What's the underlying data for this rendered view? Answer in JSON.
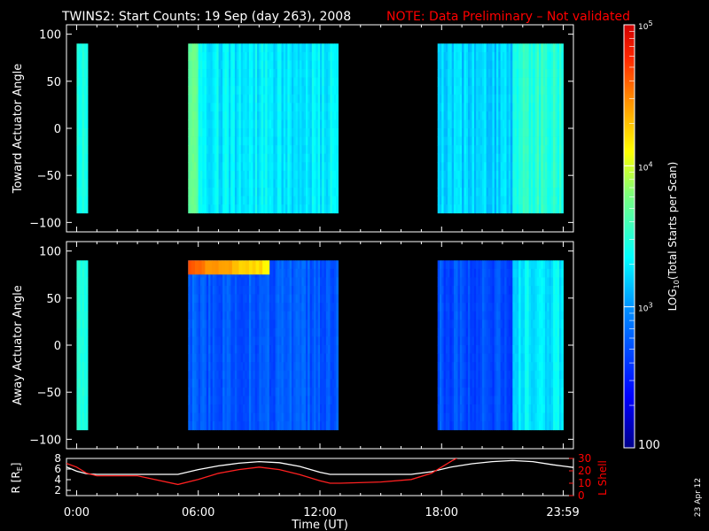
{
  "title": "TWINS2: Start Counts: 19 Sep (day 263), 2008",
  "note": "NOTE: Data Preliminary – Not validated",
  "date_stamp": "23 Apr 12",
  "colors": {
    "background": "#000000",
    "axes": "#ffffff",
    "note": "#ff0000",
    "lshell": "#ff2020",
    "radius": "#ffffff"
  },
  "chart_data": [
    {
      "type": "heatmap",
      "panel": "toward",
      "ylabel": "Toward Actuator Angle",
      "ylim": [
        -110,
        110
      ],
      "yticks": [
        "100",
        "50",
        "0",
        "−50",
        "−100"
      ],
      "ytick_values": [
        100,
        50,
        0,
        -50,
        -100
      ],
      "xlim_hours": [
        -0.5,
        24.5
      ],
      "angle_range": [
        -90,
        90
      ],
      "data_blocks_hours": [
        [
          0.0,
          0.55
        ],
        [
          5.5,
          12.9
        ],
        [
          17.8,
          24.0
        ]
      ],
      "typical_log10_counts": [
        {
          "hours": [
            0.0,
            0.55
          ],
          "value": 3.5
        },
        {
          "hours": [
            5.5,
            6.0
          ],
          "value": 3.75
        },
        {
          "hours": [
            6.0,
            12.9
          ],
          "value": 3.3
        },
        {
          "hours": [
            17.8,
            21.5
          ],
          "value": 3.2
        },
        {
          "hours": [
            21.5,
            24.0
          ],
          "value": 3.5
        }
      ]
    },
    {
      "type": "heatmap",
      "panel": "away",
      "ylabel": "Away Actuator Angle",
      "ylim": [
        -110,
        110
      ],
      "yticks": [
        "100",
        "50",
        "0",
        "−50",
        "−100"
      ],
      "ytick_values": [
        100,
        50,
        0,
        -50,
        -100
      ],
      "xlim_hours": [
        -0.5,
        24.5
      ],
      "angle_range": [
        -90,
        90
      ],
      "data_blocks_hours": [
        [
          0.0,
          0.55
        ],
        [
          5.5,
          12.9
        ],
        [
          17.8,
          24.0
        ]
      ],
      "typical_log10_counts": [
        {
          "hours": [
            0.0,
            0.55
          ],
          "value": 3.5
        },
        {
          "hours": [
            5.5,
            12.9
          ],
          "value": 2.75
        },
        {
          "hours": [
            17.8,
            21.5
          ],
          "value": 2.7
        },
        {
          "hours": [
            21.5,
            24.0
          ],
          "value": 3.3
        }
      ],
      "hot_band": {
        "angle_range": [
          75,
          90
        ],
        "hours": [
          5.5,
          9.5
        ],
        "log10_counts": 4.6
      }
    },
    {
      "type": "line",
      "panel": "orbit",
      "ylabel_left": "R [R",
      "ylabel_left_sub": "E",
      "ylabel_left_close": "]",
      "ylabel_right": "L Shell",
      "xlabel": "Time (UT)",
      "xtick_labels": [
        "0:00",
        "06:00",
        "12:00",
        "18:00",
        "23:59"
      ],
      "xtick_hours": [
        0,
        6,
        12,
        18,
        23.98
      ],
      "ylim_left": [
        1,
        8
      ],
      "yticks_left": [
        "8",
        "6",
        "4",
        "2"
      ],
      "ylim_right": [
        0,
        30
      ],
      "yticks_right": [
        "30",
        "20",
        "10",
        "0"
      ],
      "series": [
        {
          "axis": "left",
          "hours": [
            -0.5,
            0.0,
            0.5,
            1.0,
            3.0,
            5.0,
            6.0,
            7.0,
            8.0,
            9.0,
            10.0,
            11.0,
            12.0,
            12.5,
            13.0,
            15.0,
            16.5,
            17.5,
            18.5,
            19.5,
            20.5,
            21.5,
            22.5,
            23.5,
            24.5
          ],
          "values": [
            6.4,
            5.6,
            5.1,
            5.0,
            5.0,
            5.0,
            5.9,
            6.6,
            7.1,
            7.4,
            7.2,
            6.5,
            5.4,
            5.0,
            5.0,
            5.0,
            5.0,
            5.5,
            6.4,
            7.0,
            7.4,
            7.6,
            7.4,
            6.8,
            6.3
          ]
        },
        {
          "axis": "right",
          "hours": [
            -0.5,
            0.0,
            0.5,
            1.0,
            3.0,
            5.0,
            6.0,
            7.0,
            8.0,
            9.0,
            10.0,
            11.0,
            12.0,
            12.5,
            13.0,
            15.0,
            16.5,
            17.5,
            18.5,
            19.2
          ],
          "values": [
            26,
            23,
            18,
            16,
            16,
            9,
            13,
            18,
            21,
            23,
            21,
            17,
            12,
            10,
            10,
            11,
            13,
            18,
            28,
            34
          ]
        }
      ]
    }
  ],
  "colorbar": {
    "label_prefix": "LOG",
    "label_sub": "10",
    "label_suffix": "(Total Starts per Scan)",
    "scale": "log",
    "range_log10": [
      2,
      5
    ],
    "tick_labels": [
      {
        "base": "10",
        "exp": "5",
        "log10": 5
      },
      {
        "base": "10",
        "exp": "4",
        "log10": 4
      },
      {
        "base": "10",
        "exp": "3",
        "log10": 3
      }
    ],
    "bottom_label": "100",
    "bottom_log10": 2
  }
}
